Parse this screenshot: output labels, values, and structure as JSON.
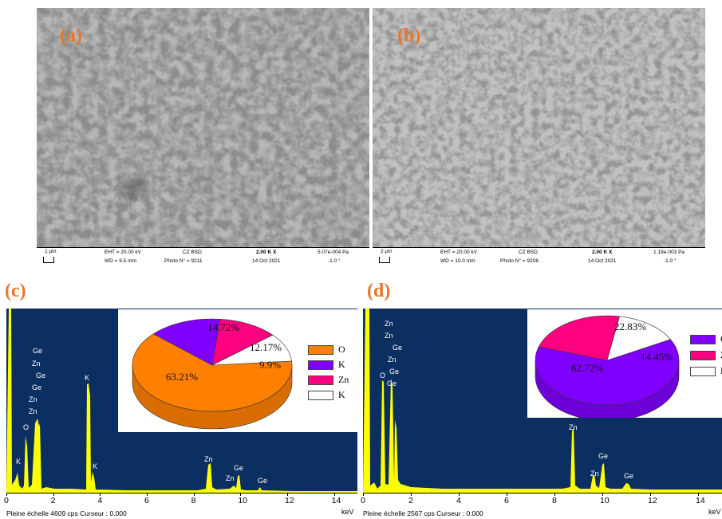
{
  "panels": {
    "a": {
      "label": "(a)"
    },
    "b": {
      "label": "(b)"
    },
    "c": {
      "label": "(c)"
    },
    "d": {
      "label": "(d)"
    }
  },
  "sem_a": {
    "scale": "1 µm",
    "eht": "EHT = 20.00 kV",
    "wd": "WD =  9.5 mm",
    "detector": "CZ BSD",
    "photo": "Photo N° = 9211",
    "mag": "2.00 K X",
    "date": "14 Oct 2021",
    "pressure": "5.07e-004 Pa",
    "tilt": "-1.0 °"
  },
  "sem_b": {
    "scale": "2 µm",
    "eht": "EHT = 20.00 kV",
    "wd": "WD = 10.0 mm",
    "detector": "CZ BSD",
    "photo": "Photo N° = 9206",
    "mag": "2.00 K X",
    "date": "14 Oct 2021",
    "pressure": "1.19e-003 Pa",
    "tilt": "-1.0 °"
  },
  "eds_c": {
    "footer": "Pleine échelle 4609 cps  Curseur : 0.000",
    "unit": "keV",
    "ticks": [
      "0",
      "2",
      "4",
      "6",
      "8",
      "10",
      "12",
      "14"
    ],
    "peak_labels": {
      "ge1": "Ge",
      "zn1": "Zn",
      "ge2": "Ge",
      "ge3": "Ge",
      "zn2": "Zn",
      "zn3": "Zn",
      "o": "O",
      "k_low": "K",
      "k_main": "K",
      "k_beta": "K",
      "zn_hi": "Zn",
      "zn_hi2": "Zn",
      "ge_hi": "Ge",
      "ge_hi2": "Ge"
    },
    "pie": {
      "values": [
        63.21,
        14.72,
        12.17,
        9.9
      ],
      "labels": [
        "63.21%",
        "14.72%",
        "12.17%",
        "9.9%"
      ],
      "colors": [
        "#ff8000",
        "#8000ff",
        "#ff0080",
        "#ffffff"
      ],
      "legend": [
        "O",
        "K",
        "Zn",
        "K"
      ]
    }
  },
  "eds_d": {
    "footer": "Pleine échelle 2567 cps  Curseur : 0.000",
    "unit": "keV",
    "ticks": [
      "0",
      "2",
      "4",
      "6",
      "8",
      "10",
      "12",
      "14"
    ],
    "peak_labels": {
      "zn1": "Zn",
      "zn2": "Zn",
      "ge1": "Ge",
      "zn3": "Zn",
      "ge2": "Ge",
      "ge3": "Ge",
      "o": "O",
      "zn_hi": "Zn",
      "ge_hi": "Ge",
      "zn_hi2": "Zn",
      "ge_hi2": "Ge"
    },
    "pie": {
      "values": [
        62.72,
        22.83,
        14.45
      ],
      "labels": [
        "62.72%",
        "22.83%",
        "14.45%"
      ],
      "colors": [
        "#8000ff",
        "#ff0080",
        "#ffffff"
      ],
      "legend": [
        "O",
        "Z",
        "K"
      ]
    }
  },
  "colors": {
    "panel_label": "#e8762c",
    "eds_background": "#0c2f61",
    "spectrum": "#ffff00"
  }
}
